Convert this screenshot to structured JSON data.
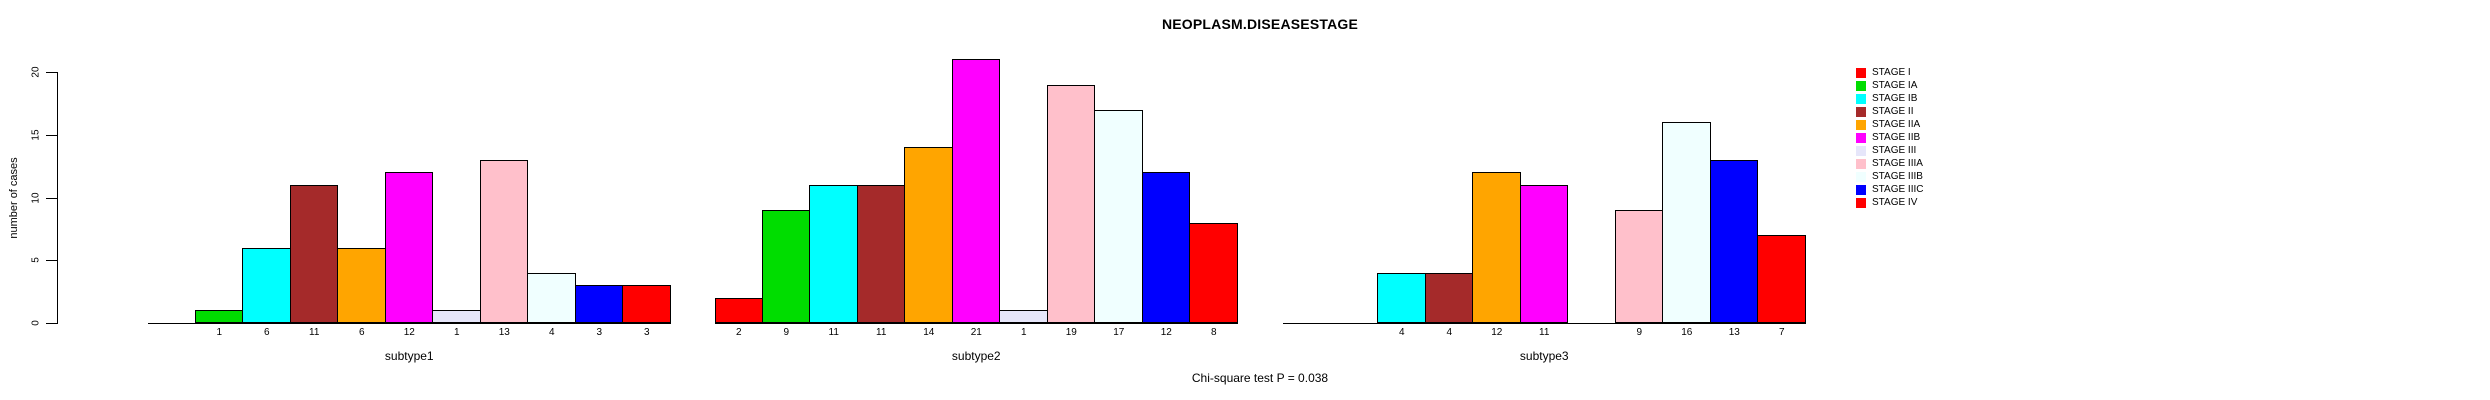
{
  "chart_data": {
    "type": "bar",
    "title": "NEOPLASM.DISEASESTAGE",
    "ylabel": "number of cases",
    "footer": "Chi-square test P = 0.038",
    "ylim": [
      0,
      20
    ],
    "yticks": [
      0,
      5,
      10,
      15,
      20
    ],
    "grid": false,
    "legend_position": "right",
    "categories": [
      "subtype1",
      "subtype2",
      "subtype3"
    ],
    "series": [
      {
        "name": "STAGE I",
        "color": "#FF0000",
        "values": [
          0,
          2,
          0
        ]
      },
      {
        "name": "STAGE IA",
        "color": "#00DD00",
        "values": [
          1,
          9,
          0
        ]
      },
      {
        "name": "STAGE IB",
        "color": "#00FFFF",
        "values": [
          6,
          11,
          4
        ]
      },
      {
        "name": "STAGE II",
        "color": "#A52A2A",
        "values": [
          11,
          11,
          4
        ]
      },
      {
        "name": "STAGE IIA",
        "color": "#FFA500",
        "values": [
          6,
          14,
          12
        ]
      },
      {
        "name": "STAGE IIB",
        "color": "#FF00FF",
        "values": [
          12,
          21,
          11
        ]
      },
      {
        "name": "STAGE III",
        "color": "#E6E6FA",
        "values": [
          1,
          1,
          0
        ]
      },
      {
        "name": "STAGE IIIA",
        "color": "#FFC0CB",
        "values": [
          13,
          19,
          9
        ]
      },
      {
        "name": "STAGE IIIB",
        "color": "#F0FFFF",
        "values": [
          4,
          17,
          16
        ]
      },
      {
        "name": "STAGE IIIC",
        "color": "#0000FF",
        "values": [
          3,
          12,
          13
        ]
      },
      {
        "name": "STAGE IV",
        "color": "#FF0000",
        "values": [
          3,
          8,
          7
        ]
      }
    ],
    "bar_label_rule": "value shown under each non-zero bar"
  }
}
